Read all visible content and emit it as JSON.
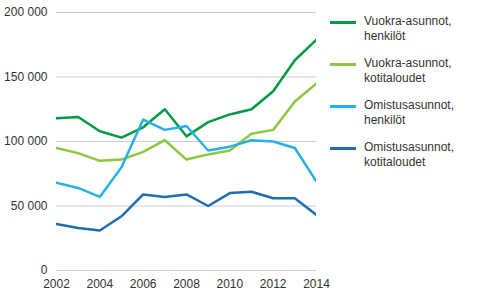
{
  "chart_data": {
    "type": "line",
    "x": [
      2002,
      2003,
      2004,
      2005,
      2006,
      2007,
      2008,
      2009,
      2010,
      2011,
      2012,
      2013,
      2014
    ],
    "series": [
      {
        "name": "Vuokra-asunnot, henkilöt",
        "color": "#009a44",
        "values": [
          118000,
          119000,
          108000,
          103000,
          111000,
          125000,
          104000,
          115000,
          121000,
          125000,
          139000,
          163000,
          179000
        ]
      },
      {
        "name": "Vuokra-asunnot, kotitaloudet",
        "color": "#8dc63f",
        "values": [
          95000,
          91000,
          85000,
          86000,
          92000,
          101000,
          86000,
          90000,
          93000,
          106000,
          109000,
          131000,
          145000
        ]
      },
      {
        "name": "Omistusasunnot, henkilöt",
        "color": "#29b0e6",
        "values": [
          68000,
          64000,
          57000,
          80000,
          117000,
          109000,
          112000,
          93000,
          96000,
          101000,
          100000,
          95000,
          69000
        ]
      },
      {
        "name": "Omistusasunnot, kotitaloudet",
        "color": "#1f6db3",
        "values": [
          36000,
          33000,
          31000,
          42000,
          59000,
          57000,
          59000,
          50000,
          60000,
          61000,
          56000,
          56000,
          43000
        ]
      }
    ],
    "xlim": [
      2002,
      2014
    ],
    "xticks": [
      2002,
      2004,
      2006,
      2008,
      2010,
      2012,
      2014
    ],
    "ylim": [
      0,
      200000
    ],
    "yticks": [
      0,
      {
        "value": 50000,
        "label": "50 000"
      },
      {
        "value": 100000,
        "label": "100 000"
      },
      {
        "value": 150000,
        "label": "150 000"
      },
      {
        "value": 200000,
        "label": "200 000"
      }
    ],
    "grid": true,
    "legend": "right"
  }
}
